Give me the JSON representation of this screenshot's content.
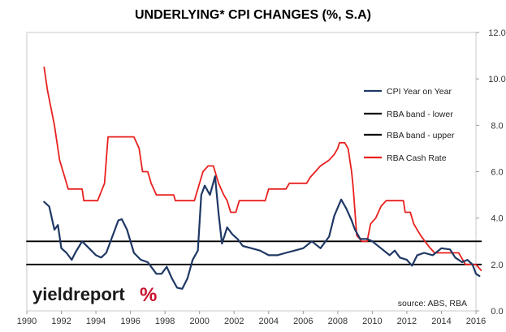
{
  "chart_data": {
    "type": "line",
    "title": "UNDERLYING* CPI CHANGES (%, S.A)",
    "xlim": [
      1990,
      2016
    ],
    "ylim": [
      0,
      12
    ],
    "x_ticks": [
      "1990",
      "1992",
      "1994",
      "1996",
      "1998",
      "2000",
      "2002",
      "2004",
      "2006",
      "2008",
      "2010",
      "2012",
      "2014",
      "2016"
    ],
    "y_ticks": [
      "0.0",
      "2.0",
      "4.0",
      "6.0",
      "8.0",
      "10.0",
      "12.0"
    ],
    "y_axis_side": "right",
    "legend_position": "top-right",
    "series": [
      {
        "name": "CPI Year on Year",
        "color": "#1f3864",
        "points": [
          [
            1991.0,
            4.7
          ],
          [
            1991.3,
            4.5
          ],
          [
            1991.6,
            3.5
          ],
          [
            1991.8,
            3.7
          ],
          [
            1992.0,
            2.7
          ],
          [
            1992.3,
            2.5
          ],
          [
            1992.6,
            2.2
          ],
          [
            1992.8,
            2.5
          ],
          [
            1993.2,
            3.0
          ],
          [
            1993.6,
            2.7
          ],
          [
            1994.0,
            2.4
          ],
          [
            1994.3,
            2.3
          ],
          [
            1994.6,
            2.5
          ],
          [
            1995.0,
            3.3
          ],
          [
            1995.3,
            3.9
          ],
          [
            1995.5,
            3.95
          ],
          [
            1995.8,
            3.5
          ],
          [
            1996.2,
            2.5
          ],
          [
            1996.6,
            2.2
          ],
          [
            1997.0,
            2.1
          ],
          [
            1997.5,
            1.6
          ],
          [
            1997.8,
            1.6
          ],
          [
            1998.1,
            1.9
          ],
          [
            1998.4,
            1.4
          ],
          [
            1998.7,
            1.0
          ],
          [
            1999.0,
            0.95
          ],
          [
            1999.3,
            1.4
          ],
          [
            1999.6,
            2.2
          ],
          [
            1999.9,
            2.6
          ],
          [
            2000.1,
            5.0
          ],
          [
            2000.3,
            5.4
          ],
          [
            2000.6,
            5.0
          ],
          [
            2000.9,
            5.8
          ],
          [
            2001.1,
            4.2
          ],
          [
            2001.3,
            2.9
          ],
          [
            2001.6,
            3.6
          ],
          [
            2001.9,
            3.3
          ],
          [
            2002.2,
            3.1
          ],
          [
            2002.5,
            2.8
          ],
          [
            2003.0,
            2.7
          ],
          [
            2003.5,
            2.6
          ],
          [
            2004.0,
            2.4
          ],
          [
            2004.5,
            2.4
          ],
          [
            2005.0,
            2.5
          ],
          [
            2005.5,
            2.6
          ],
          [
            2006.0,
            2.7
          ],
          [
            2006.5,
            3.0
          ],
          [
            2007.0,
            2.7
          ],
          [
            2007.5,
            3.2
          ],
          [
            2007.8,
            4.1
          ],
          [
            2008.2,
            4.8
          ],
          [
            2008.5,
            4.4
          ],
          [
            2008.8,
            3.9
          ],
          [
            2009.0,
            3.5
          ],
          [
            2009.3,
            3.1
          ],
          [
            2009.7,
            3.1
          ],
          [
            2010.0,
            3.0
          ],
          [
            2010.5,
            2.7
          ],
          [
            2011.0,
            2.4
          ],
          [
            2011.3,
            2.6
          ],
          [
            2011.6,
            2.3
          ],
          [
            2012.0,
            2.2
          ],
          [
            2012.3,
            1.95
          ],
          [
            2012.6,
            2.4
          ],
          [
            2013.0,
            2.5
          ],
          [
            2013.5,
            2.4
          ],
          [
            2014.0,
            2.7
          ],
          [
            2014.5,
            2.65
          ],
          [
            2014.8,
            2.3
          ],
          [
            2015.2,
            2.1
          ],
          [
            2015.5,
            2.2
          ],
          [
            2015.8,
            2.0
          ],
          [
            2016.0,
            1.6
          ],
          [
            2016.2,
            1.5
          ]
        ]
      },
      {
        "name": "RBA band - lower",
        "color": "#000000",
        "points": [
          [
            1990,
            2.0
          ],
          [
            2016.3,
            2.0
          ]
        ]
      },
      {
        "name": "RBA band - upper",
        "color": "#000000",
        "points": [
          [
            1990,
            3.0
          ],
          [
            2016.3,
            3.0
          ]
        ]
      },
      {
        "name": "RBA Cash Rate",
        "color": "#e8201e",
        "points": [
          [
            1991.0,
            10.5
          ],
          [
            1991.2,
            9.5
          ],
          [
            1991.6,
            8.0
          ],
          [
            1991.9,
            6.5
          ],
          [
            1992.2,
            5.75
          ],
          [
            1992.4,
            5.25
          ],
          [
            1993.2,
            5.25
          ],
          [
            1993.3,
            4.75
          ],
          [
            1994.1,
            4.75
          ],
          [
            1994.5,
            5.5
          ],
          [
            1994.7,
            7.5
          ],
          [
            1996.2,
            7.5
          ],
          [
            1996.5,
            7.0
          ],
          [
            1996.7,
            6.0
          ],
          [
            1997.0,
            6.0
          ],
          [
            1997.2,
            5.5
          ],
          [
            1997.5,
            5.0
          ],
          [
            1998.5,
            5.0
          ],
          [
            1998.6,
            4.75
          ],
          [
            1999.7,
            4.75
          ],
          [
            2000.0,
            5.5
          ],
          [
            2000.2,
            6.0
          ],
          [
            2000.5,
            6.25
          ],
          [
            2000.8,
            6.25
          ],
          [
            2001.1,
            5.5
          ],
          [
            2001.4,
            5.0
          ],
          [
            2001.6,
            4.75
          ],
          [
            2001.8,
            4.25
          ],
          [
            2002.1,
            4.25
          ],
          [
            2002.3,
            4.75
          ],
          [
            2003.8,
            4.75
          ],
          [
            2004.0,
            5.25
          ],
          [
            2005.0,
            5.25
          ],
          [
            2005.2,
            5.5
          ],
          [
            2006.2,
            5.5
          ],
          [
            2006.4,
            5.75
          ],
          [
            2006.7,
            6.0
          ],
          [
            2007.0,
            6.25
          ],
          [
            2007.5,
            6.5
          ],
          [
            2007.8,
            6.75
          ],
          [
            2008.0,
            7.0
          ],
          [
            2008.1,
            7.25
          ],
          [
            2008.4,
            7.25
          ],
          [
            2008.6,
            7.0
          ],
          [
            2008.8,
            6.0
          ],
          [
            2008.9,
            5.25
          ],
          [
            2009.0,
            4.25
          ],
          [
            2009.1,
            3.25
          ],
          [
            2009.4,
            3.0
          ],
          [
            2009.7,
            3.0
          ],
          [
            2009.9,
            3.75
          ],
          [
            2010.2,
            4.0
          ],
          [
            2010.5,
            4.5
          ],
          [
            2010.8,
            4.75
          ],
          [
            2011.8,
            4.75
          ],
          [
            2011.9,
            4.25
          ],
          [
            2012.2,
            4.25
          ],
          [
            2012.4,
            3.75
          ],
          [
            2012.8,
            3.25
          ],
          [
            2013.3,
            2.75
          ],
          [
            2013.6,
            2.5
          ],
          [
            2015.0,
            2.5
          ],
          [
            2015.2,
            2.25
          ],
          [
            2015.4,
            2.0
          ],
          [
            2016.0,
            2.0
          ],
          [
            2016.3,
            1.75
          ]
        ]
      }
    ]
  },
  "source_text": "source: ABS, RBA",
  "logo": {
    "main": "yieldreport",
    "pct": "%"
  }
}
